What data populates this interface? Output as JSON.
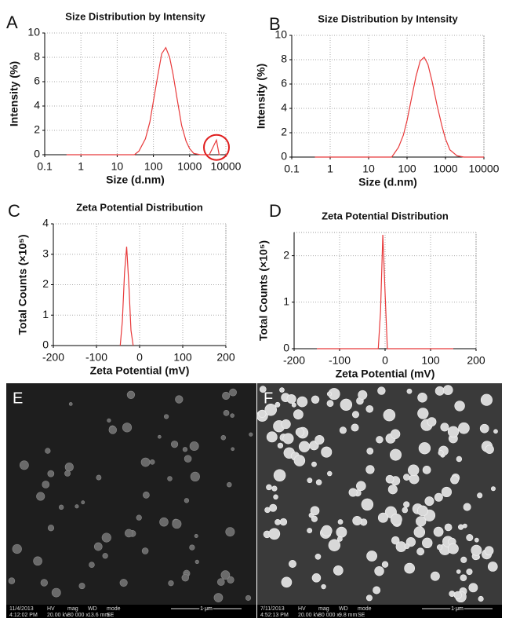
{
  "chart_data": [
    {
      "type": "line",
      "panel": "A",
      "title": "Size Distribution by Intensity",
      "x_label": "Size (d.nm)",
      "y_label": "Intensity (%)",
      "color": "#e8393a",
      "xscale": "log",
      "grid": true,
      "xlim": [
        0.1,
        10000
      ],
      "xticks": [
        0.1,
        1,
        10,
        100,
        1000,
        10000
      ],
      "ylim": [
        0,
        10
      ],
      "yticks": [
        0,
        2,
        4,
        6,
        8,
        10
      ],
      "x": [
        0.4,
        20,
        30,
        40,
        60,
        80,
        100,
        130,
        170,
        220,
        280,
        350,
        450,
        600,
        800,
        1000,
        1300,
        2000,
        3500,
        5500,
        6500,
        7000
      ],
      "values": [
        0,
        0,
        0,
        0.3,
        1.3,
        2.7,
        4.4,
        6.4,
        8.3,
        8.8,
        8.0,
        6.6,
        4.6,
        2.4,
        1.1,
        0.5,
        0.1,
        0,
        0,
        1.2,
        0,
        0
      ]
    },
    {
      "type": "line",
      "panel": "B",
      "title": "Size Distribution by Intensity",
      "x_label": "Size (d.nm)",
      "y_label": "Intensity (%)",
      "color": "#e8393a",
      "xscale": "log",
      "grid": true,
      "xlim": [
        0.1,
        10000
      ],
      "xticks": [
        0.1,
        1,
        10,
        100,
        1000,
        10000
      ],
      "ylim": [
        0,
        10
      ],
      "yticks": [
        0,
        2,
        4,
        6,
        8,
        10
      ],
      "x": [
        0.4,
        20,
        40,
        60,
        80,
        100,
        130,
        170,
        220,
        280,
        350,
        450,
        600,
        800,
        1000,
        1300,
        2000,
        3000,
        10000
      ],
      "values": [
        0,
        0,
        0,
        0.8,
        1.8,
        3.0,
        4.8,
        6.6,
        7.9,
        8.2,
        7.6,
        6.2,
        4.3,
        2.6,
        1.5,
        0.6,
        0.1,
        0,
        0
      ]
    },
    {
      "type": "line",
      "panel": "C",
      "title": "Zeta Potential Distribution",
      "x_label": "Zeta Potential (mV)",
      "y_label": "Total Counts (×10⁵)",
      "color": "#e8393a",
      "xscale": "linear",
      "grid": true,
      "xlim": [
        -200,
        200
      ],
      "xticks": [
        -200,
        -100,
        0,
        100,
        200
      ],
      "ylim": [
        0,
        4
      ],
      "yticks": [
        0,
        1,
        2,
        3,
        4
      ],
      "x": [
        -45,
        -40,
        -35,
        -30,
        -25,
        -20,
        -15
      ],
      "values": [
        0,
        0.8,
        2.4,
        3.25,
        2.0,
        0.5,
        0
      ]
    },
    {
      "type": "line",
      "panel": "D",
      "title": "Zeta Potential Distribution",
      "x_label": "Zeta Potential (mV)",
      "y_label": "Total Counts (×10⁵)",
      "color": "#e8393a",
      "xscale": "linear",
      "grid": true,
      "xlim": [
        -200,
        200
      ],
      "xticks": [
        -200,
        -100,
        0,
        100,
        200
      ],
      "ylim": [
        0,
        2.5
      ],
      "yticks": [
        0,
        1,
        2
      ],
      "x": [
        -150,
        -15,
        -10,
        -5,
        0,
        5,
        150
      ],
      "values": [
        0,
        0,
        0.8,
        2.45,
        1.2,
        0,
        0
      ]
    }
  ],
  "images": [
    {
      "label": "E",
      "info_top": [
        "11/4/2013",
        "HV",
        "mag",
        "WD",
        "mode"
      ],
      "info_bottom": [
        "4:12:02 PM",
        "20.00 kV",
        "80 000 x",
        "13.6 mm",
        "SE"
      ],
      "scale": "1 μm"
    },
    {
      "label": "F",
      "info_top": [
        "7/11/2013",
        "HV",
        "mag",
        "WD",
        "mode"
      ],
      "info_bottom": [
        "4:52:13 PM",
        "20.00 kV",
        "80 000 x",
        "9.8 mm",
        "SE"
      ],
      "scale": "1 μm"
    }
  ]
}
